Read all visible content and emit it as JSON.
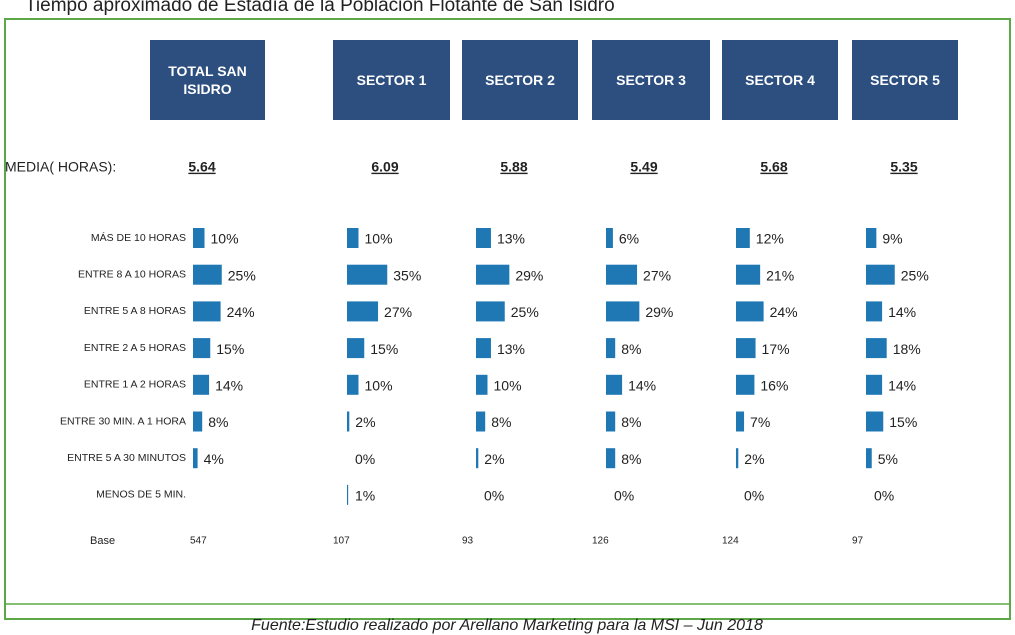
{
  "chart_data": {
    "type": "bar",
    "title": "Tiempo aproximado de Estadía de la Población Flotante de San Isidro",
    "source": "Fuente:Estudio realizado por Arellano Marketing para la MSI – Jun 2018",
    "media_label": "MEDIA( HORAS):",
    "base_label": "Base",
    "color": "#1f78b4",
    "header_color": "#2d4f7f",
    "categories": [
      "MÁS DE 10 HORAS",
      "ENTRE 8 A 10 HORAS",
      "ENTRE 5 A 8 HORAS",
      "ENTRE 2 A 5 HORAS",
      "ENTRE 1 A 2 HORAS",
      "ENTRE 30 MIN. A 1 HORA",
      "ENTRE 5 A 30 MINUTOS",
      "MENOS DE 5 MIN."
    ],
    "series": [
      {
        "name": "TOTAL SAN ISIDRO",
        "media": 5.64,
        "base": 547,
        "values": [
          10,
          25,
          24,
          15,
          14,
          8,
          4,
          null
        ],
        "value_labels": [
          "10%",
          "25%",
          "24%",
          "15%",
          "14%",
          "8%",
          "4%",
          null
        ]
      },
      {
        "name": "SECTOR 1",
        "media": 6.09,
        "base": 107,
        "values": [
          10,
          35,
          27,
          15,
          10,
          2,
          0,
          1
        ],
        "value_labels": [
          "10%",
          "35%",
          "27%",
          "15%",
          "10%",
          "2%",
          "0%",
          "1%"
        ]
      },
      {
        "name": "SECTOR 2",
        "media": 5.88,
        "base": 93,
        "values": [
          13,
          29,
          25,
          13,
          10,
          8,
          2,
          0
        ],
        "value_labels": [
          "13%",
          "29%",
          "25%",
          "13%",
          "10%",
          "8%",
          "2%",
          "0%"
        ]
      },
      {
        "name": "SECTOR 3",
        "media": 5.49,
        "base": 126,
        "values": [
          6,
          27,
          29,
          8,
          14,
          8,
          8,
          0
        ],
        "value_labels": [
          "6%",
          "27%",
          "29%",
          "8%",
          "14%",
          "8%",
          "8%",
          "0%"
        ]
      },
      {
        "name": "SECTOR 4",
        "media": 5.68,
        "base": 124,
        "values": [
          12,
          21,
          24,
          17,
          16,
          7,
          2,
          0
        ],
        "value_labels": [
          "12%",
          "21%",
          "24%",
          "17%",
          "16%",
          "7%",
          "2%",
          "0%"
        ]
      },
      {
        "name": "SECTOR 5",
        "media": 5.35,
        "base": 97,
        "values": [
          9,
          25,
          14,
          18,
          14,
          15,
          5,
          0
        ],
        "value_labels": [
          "9%",
          "25%",
          "14%",
          "18%",
          "14%",
          "15%",
          "5%",
          "0%"
        ]
      }
    ]
  }
}
